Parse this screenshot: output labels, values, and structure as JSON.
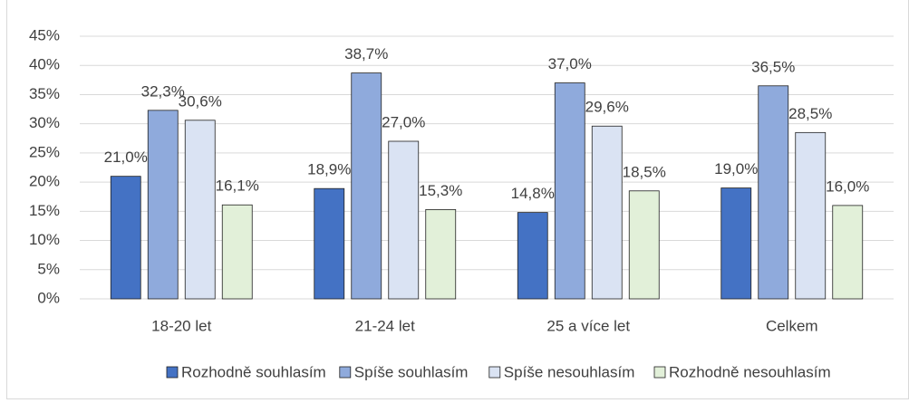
{
  "chart_data": {
    "type": "bar",
    "categories": [
      "18-20 let",
      "21-24 let",
      "25 a více let",
      "Celkem"
    ],
    "series": [
      {
        "name": "Rozhodně souhlasím",
        "color": "#4472c4",
        "values": [
          21.0,
          18.9,
          14.8,
          19.0
        ],
        "value_labels": [
          "21,0%",
          "18,9%",
          "14,8%",
          "19,0%"
        ]
      },
      {
        "name": "Spíše souhlasím",
        "color": "#8faadc",
        "values": [
          32.3,
          38.7,
          37.0,
          36.5
        ],
        "value_labels": [
          "32,3%",
          "38,7%",
          "37,0%",
          "36,5%"
        ]
      },
      {
        "name": "Spíše nesouhlasím",
        "color": "#dae3f3",
        "values": [
          30.6,
          27.0,
          29.6,
          28.5
        ],
        "value_labels": [
          "30,6%",
          "27,0%",
          "29,6%",
          "28,5%"
        ]
      },
      {
        "name": "Rozhodně nesouhlasím",
        "color": "#e2f0d9",
        "values": [
          16.1,
          15.3,
          18.5,
          16.0
        ],
        "value_labels": [
          "16,1%",
          "15,3%",
          "18,5%",
          "16,0%"
        ]
      }
    ],
    "ylim": [
      0,
      45
    ],
    "yticks": [
      {
        "value": 0,
        "label": "0%"
      },
      {
        "value": 5,
        "label": "5%"
      },
      {
        "value": 10,
        "label": "10%"
      },
      {
        "value": 15,
        "label": "15%"
      },
      {
        "value": 20,
        "label": "20%"
      },
      {
        "value": 25,
        "label": "25%"
      },
      {
        "value": 30,
        "label": "30%"
      },
      {
        "value": 35,
        "label": "35%"
      },
      {
        "value": 40,
        "label": "40%"
      },
      {
        "value": 45,
        "label": "45%"
      }
    ],
    "grid": true,
    "legend": "bottom"
  }
}
